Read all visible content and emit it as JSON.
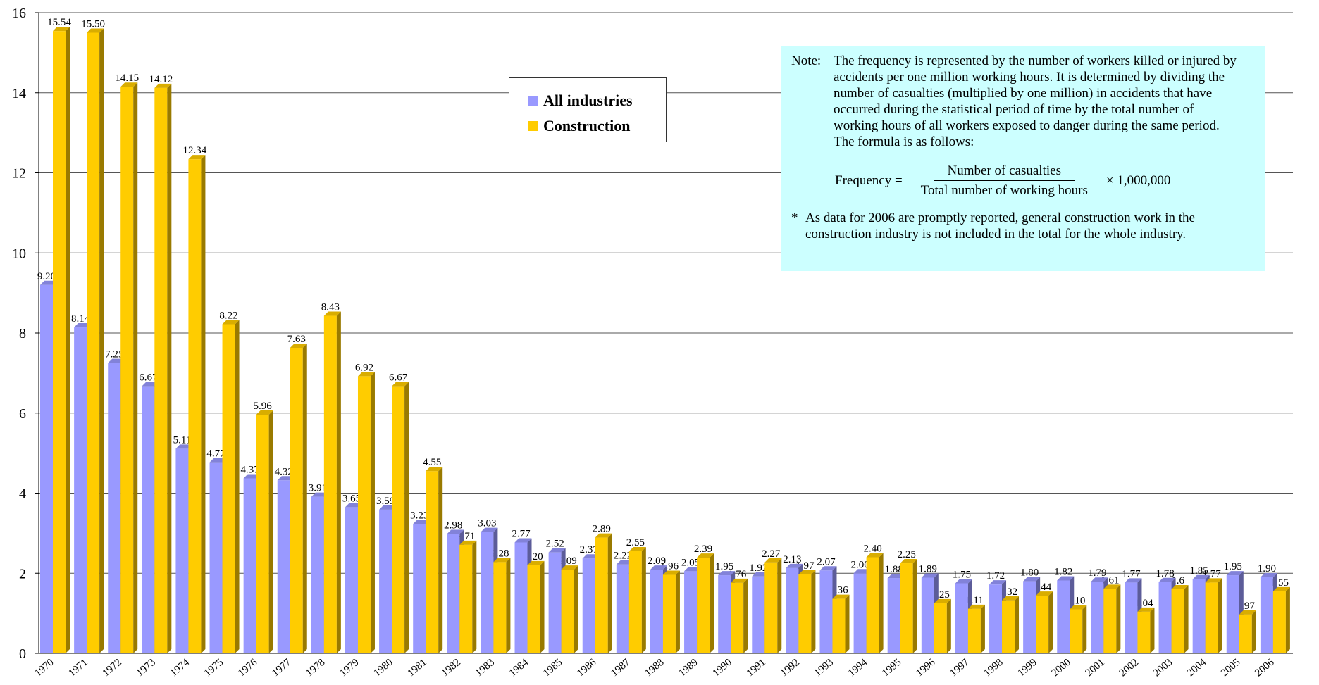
{
  "chart_data": {
    "type": "bar",
    "categories": [
      "1970",
      "1971",
      "1972",
      "1973",
      "1974",
      "1975",
      "1976",
      "1977",
      "1978",
      "1979",
      "1980",
      "1981",
      "1982",
      "1983",
      "1984",
      "1985",
      "1986",
      "1987",
      "1988",
      "1989",
      "1990",
      "1991",
      "1992",
      "1993",
      "1994",
      "1995",
      "1996",
      "1997",
      "1998",
      "1999",
      "2000",
      "2001",
      "2002",
      "2003",
      "2004",
      "2005",
      "2006"
    ],
    "series": [
      {
        "name": "All industries",
        "color": "#9999ff",
        "values": [
          9.2,
          8.14,
          7.25,
          6.67,
          5.11,
          4.77,
          4.37,
          4.32,
          3.91,
          3.65,
          3.59,
          3.23,
          2.98,
          3.03,
          2.77,
          2.52,
          2.37,
          2.22,
          2.09,
          2.05,
          1.95,
          1.92,
          2.13,
          2.07,
          2.0,
          1.88,
          1.89,
          1.75,
          1.72,
          1.8,
          1.82,
          1.79,
          1.77,
          1.78,
          1.85,
          1.95,
          1.9
        ],
        "labels": [
          "9.20",
          "8.14",
          "7.25",
          "6.67",
          "5.11",
          "4.77",
          "4.37",
          "4.32",
          "3.91",
          "3.65",
          "3.59",
          "3.23",
          "2.98",
          "3.03",
          "2.77",
          "2.52",
          "2.37",
          "2.22",
          "2.09",
          "2.05",
          "1.95",
          "1.92",
          "2.13",
          "2.07",
          "2.00",
          "1.88",
          "1.89",
          "1.75",
          "1.72",
          "1.80",
          "1.82",
          "1.79",
          "1.77",
          "1.78",
          "1.85",
          "1.95",
          "1.90"
        ]
      },
      {
        "name": "Construction",
        "color": "#ffcc00",
        "values": [
          15.54,
          15.5,
          14.15,
          14.12,
          12.34,
          8.22,
          5.96,
          7.63,
          8.43,
          6.92,
          6.67,
          4.55,
          2.71,
          2.28,
          2.2,
          2.09,
          2.89,
          2.55,
          1.96,
          2.39,
          1.76,
          2.27,
          1.97,
          1.36,
          2.4,
          2.25,
          1.25,
          1.11,
          1.32,
          1.44,
          1.1,
          1.61,
          1.04,
          1.6,
          1.77,
          0.97,
          1.55
        ],
        "labels": [
          "15.54",
          "15.50",
          "14.15",
          "14.12",
          "12.34",
          "8.22",
          "5.96",
          "7.63",
          "8.43",
          "6.92",
          "6.67",
          "4.55",
          "2.71",
          "2.28",
          "2.20",
          "2.09",
          "2.89",
          "2.55",
          "1.96",
          "2.39",
          "1.76",
          "2.27",
          "1.97",
          "1.36",
          "2.40",
          "2.25",
          "1.25",
          "1.11",
          "1.32",
          "1.44",
          "1.10",
          "1.61",
          "1.04",
          "1.6",
          "1.77",
          "0.97",
          "1.55"
        ]
      }
    ],
    "ylim": [
      0,
      16
    ],
    "yticks": [
      "0",
      "2",
      "4",
      "6",
      "8",
      "10",
      "12",
      "14",
      "16"
    ],
    "grid": true,
    "legend": "top-center"
  },
  "legend": {
    "items": [
      {
        "label": "All industries",
        "color": "#9999ff"
      },
      {
        "label": "Construction",
        "color": "#ffcc00"
      }
    ]
  },
  "note": {
    "label": "Note:",
    "text": "The frequency is represented by the number of workers killed or injured by accidents per one million working hours. It is determined by dividing the number of casualties (multiplied by one million) in accidents that have occurred during the statistical period of time by the total number of working hours of all workers exposed to danger during the same period. The formula is as follows:",
    "formula_lhs": "Frequency =",
    "formula_num": "Number of casualties",
    "formula_den": "Total number of working hours",
    "formula_rhs": "× 1,000,000",
    "footnote_mark": "*",
    "footnote": "As data for 2006 are promptly reported, general construction work in the construction industry is not included in the total for the whole industry."
  }
}
